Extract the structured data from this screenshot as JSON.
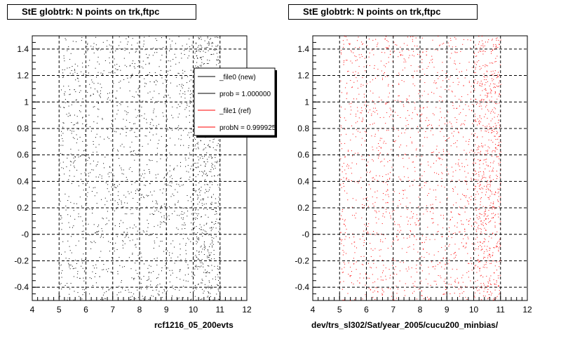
{
  "footer": {
    "stamp": ""
  },
  "chart_data": [
    {
      "type": "scatter",
      "title": "StE globtrk: N points on trk,ftpc",
      "xlabel": "rcf1216_05_200evts",
      "ylabel": "",
      "xlim": [
        4,
        12
      ],
      "ylim": [
        -0.5,
        1.5
      ],
      "xticks": [
        "4",
        "5",
        "6",
        "7",
        "8",
        "9",
        "10",
        "11",
        "12"
      ],
      "yticks": [
        "-0.4",
        "-0.2",
        "-0",
        "0.2",
        "0.4",
        "0.6",
        "0.8",
        "1",
        "1.2",
        "1.4"
      ],
      "grid": true,
      "color": "#000000",
      "density": [
        {
          "x_range": [
            5,
            10
          ],
          "points_per_unit_x": 260
        },
        {
          "x_range": [
            10,
            11
          ],
          "points_per_unit_x": 700
        }
      ],
      "legend": {
        "placement": "top-right",
        "entries": [
          {
            "label": "_file0 (new)",
            "color": "#000000"
          },
          {
            "label": "prob = 1.000000",
            "color": "#000000"
          },
          {
            "label": "_file1 (ref)",
            "color": "#ff0000"
          },
          {
            "label": "probN = 0.999925",
            "color": "#ff0000"
          }
        ]
      }
    },
    {
      "type": "scatter",
      "title": "StE globtrk: N points on trk,ftpc",
      "xlabel": "dev/trs_sl302/Sat/year_2005/cucu200_minbias/",
      "ylabel": "",
      "xlim": [
        4,
        12
      ],
      "ylim": [
        -0.5,
        1.5
      ],
      "xticks": [
        "4",
        "5",
        "6",
        "7",
        "8",
        "9",
        "10",
        "11",
        "12"
      ],
      "yticks": [
        "-0.4",
        "-0.2",
        "-0",
        "0.2",
        "0.4",
        "0.6",
        "0.8",
        "1",
        "1.2",
        "1.4"
      ],
      "grid": true,
      "color": "#ff0000",
      "density": [
        {
          "x_range": [
            5,
            10
          ],
          "points_per_unit_x": 260
        },
        {
          "x_range": [
            10,
            11
          ],
          "points_per_unit_x": 700
        }
      ]
    }
  ]
}
